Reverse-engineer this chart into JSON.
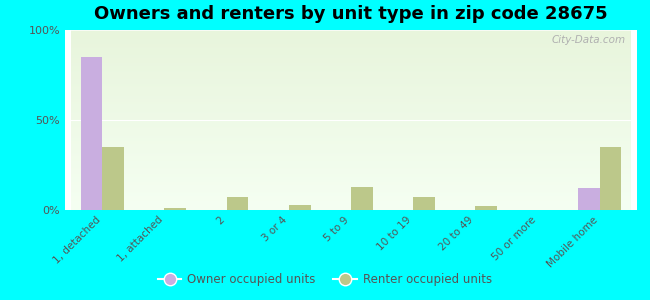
{
  "title": "Owners and renters by unit type in zip code 28675",
  "categories": [
    "1, detached",
    "1, attached",
    "2",
    "3 or 4",
    "5 to 9",
    "10 to 19",
    "20 to 49",
    "50 or more",
    "Mobile home"
  ],
  "owner_values": [
    85,
    0,
    0,
    0,
    0,
    0,
    0,
    0,
    12
  ],
  "renter_values": [
    35,
    1,
    7,
    3,
    13,
    7,
    2,
    0,
    35
  ],
  "owner_color": "#c9aee0",
  "renter_color": "#bcc88a",
  "background_color": "#00ffff",
  "ylim": [
    0,
    100
  ],
  "yticks": [
    0,
    50,
    100
  ],
  "ytick_labels": [
    "0%",
    "50%",
    "100%"
  ],
  "bar_width": 0.35,
  "legend_owner": "Owner occupied units",
  "legend_renter": "Renter occupied units",
  "title_fontsize": 13
}
